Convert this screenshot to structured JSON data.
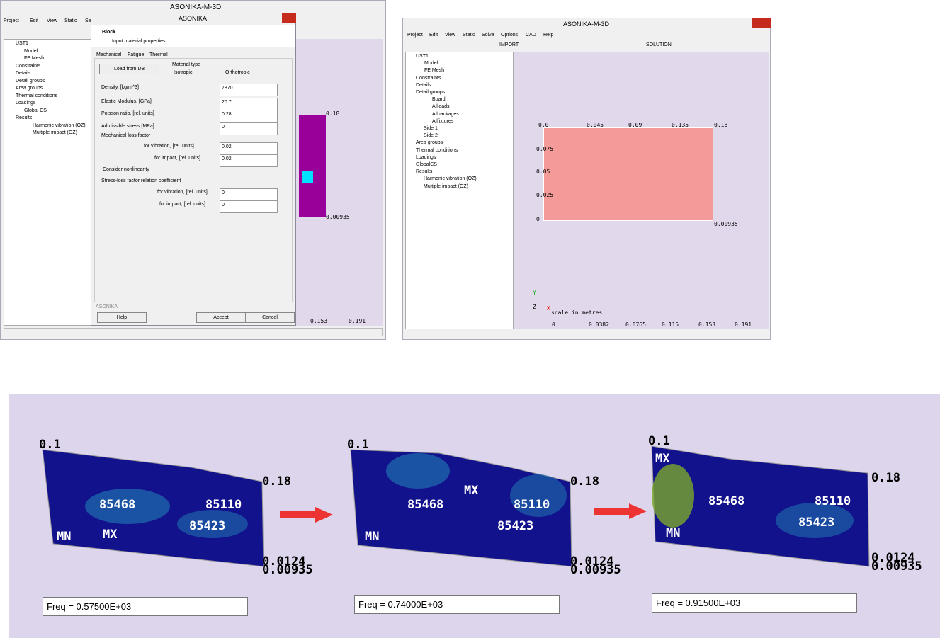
{
  "left_window": {
    "title": "ASONIKA-M-3D",
    "menu": [
      "Project",
      "Edit",
      "View",
      "Static",
      "Se"
    ],
    "tree": [
      "UST1",
      "Model",
      "FE Mesh",
      "Constraints",
      "Details",
      "Detail groups",
      "Area groups",
      "Thermal conditions",
      "Loadings",
      "Global CS",
      "Results",
      "Harmonic vibration (OZ)",
      "Multiple impact (OZ)"
    ],
    "axis_labels": [
      "0.18",
      "0.00935",
      "0.153",
      "0.191"
    ]
  },
  "dialog": {
    "title": "ASONIKA",
    "heading": "Block",
    "subheading": "Input material properties",
    "tabs": [
      "Mechanical",
      "Fatigue",
      "Thermal"
    ],
    "load_button": "Load from DB",
    "material_type": "Material type",
    "radio": [
      "Isotropic",
      "Orthotropic"
    ],
    "fields": [
      {
        "label": "Density, [kg/m^3]",
        "value": "7870"
      },
      {
        "label": "Elastic Modulus, [GPa]",
        "value": "20.7"
      },
      {
        "label": "Poisson ratio, [rel. units]",
        "value": "0.28"
      },
      {
        "label": "Admissible stress [MPa]",
        "value": "0"
      }
    ],
    "loss_factor": "Mechanical loss factor",
    "loss_fields": [
      {
        "label": "for vibration, [rel. units]",
        "value": "0.02"
      },
      {
        "label": "for impact, [rel. units]",
        "value": "0.02"
      }
    ],
    "nonlinearity": "Consider nonlinearity",
    "stress_heading": "Stress-loss factor relation coefficient",
    "stress_fields": [
      {
        "label": "for vibration, [rel. units]",
        "value": "0"
      },
      {
        "label": "for impact, [rel. units]",
        "value": "0"
      }
    ],
    "footer": "ASONIKA",
    "buttons": [
      "Help",
      "Accept",
      "Cancel"
    ]
  },
  "right_window": {
    "title": "ASONIKA-M-3D",
    "menu": [
      "Project",
      "Edit",
      "View",
      "Static",
      "Solve",
      "Options",
      "CAD",
      "Help"
    ],
    "toolbar": [
      "IMPORT",
      "SOLUTION"
    ],
    "tree": [
      "UST1",
      "Model",
      "FE Mesh",
      "Constraints",
      "Details",
      "Detail groups",
      "Board",
      "Allleads",
      "Allpackages",
      "Allfixtures",
      "Side 1",
      "Side 2",
      "Area groups",
      "Thermal conditions",
      "Loadings",
      "GlobalCS",
      "Results",
      "Harmonic vibration (OZ)",
      "Multiple impact (OZ)"
    ],
    "top_ticks": [
      "0.0",
      "0.045",
      "0.09",
      "0.135",
      "0.18"
    ],
    "left_ticks": [
      "0.075",
      "0.05",
      "0.025",
      "0"
    ],
    "corner": "0.00935",
    "axes": [
      "Y",
      "Z",
      "X"
    ],
    "scale_title": "scale in metres",
    "scale_ticks": [
      "0",
      "0.0382",
      "0.0765",
      "0.115",
      "0.153",
      "0.191"
    ]
  },
  "bottom_panel": {
    "views": [
      {
        "labels": [
          "0.1",
          "0.18",
          "85468",
          "85110",
          "85423",
          "MN",
          "MX",
          "0.0124",
          "0.00935"
        ],
        "freq": "Freq =  0.57500E+03"
      },
      {
        "labels": [
          "0.1",
          "0.18",
          "85468",
          "85110",
          "85423",
          "MN",
          "MX",
          "0.0124",
          "0.00935"
        ],
        "freq": "Freq =  0.74000E+03"
      },
      {
        "labels": [
          "0.1",
          "0.18",
          "85468",
          "85110",
          "85423",
          "MN",
          "MX",
          "0.0124",
          "0.00935"
        ],
        "freq": "Freq =  0.91500E+03"
      }
    ]
  }
}
